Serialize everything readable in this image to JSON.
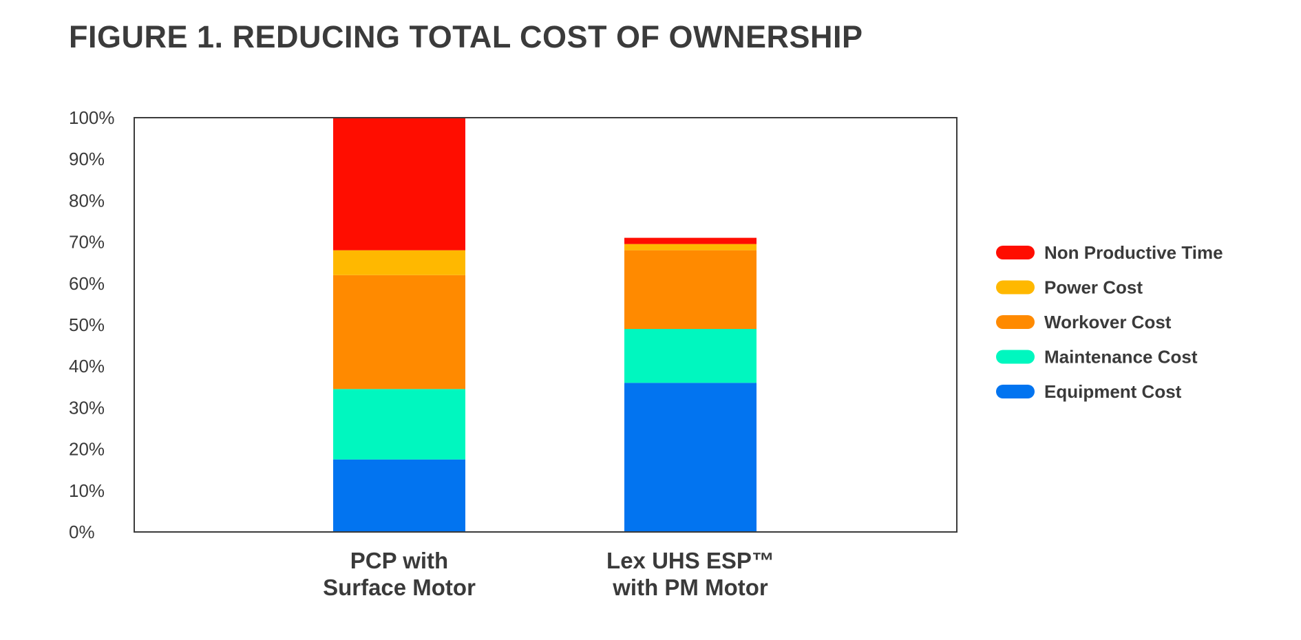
{
  "chart_data": {
    "type": "bar",
    "stacked": true,
    "title": "FIGURE 1. REDUCING TOTAL COST OF OWNERSHIP",
    "xlabel": "",
    "ylabel": "",
    "ylim": [
      0,
      100
    ],
    "yticks": [
      "0%",
      "10%",
      "20%",
      "30%",
      "40%",
      "50%",
      "60%",
      "70%",
      "80%",
      "90%",
      "100%"
    ],
    "categories": [
      [
        "PCP with",
        "Surface Motor"
      ],
      [
        "Lex UHS ESP™",
        "with PM Motor"
      ]
    ],
    "series": [
      {
        "name": "Equipment Cost",
        "color": "#0274f0",
        "values": [
          17.5,
          36
        ]
      },
      {
        "name": "Maintenance  Cost",
        "color": "#00f7bf",
        "values": [
          17,
          13
        ]
      },
      {
        "name": "Workover Cost",
        "color": "#ff8a00",
        "values": [
          27.5,
          19
        ]
      },
      {
        "name": "Power Cost",
        "color": "#ffb800",
        "values": [
          6,
          1.5
        ]
      },
      {
        "name": "Non Productive Time",
        "color": "#ff0d00",
        "values": [
          32,
          1.5
        ]
      }
    ],
    "legend_position": "right",
    "legend_order": [
      "Non Productive Time",
      "Power Cost",
      "Workover Cost",
      "Maintenance  Cost",
      "Equipment Cost"
    ],
    "grid": false
  }
}
